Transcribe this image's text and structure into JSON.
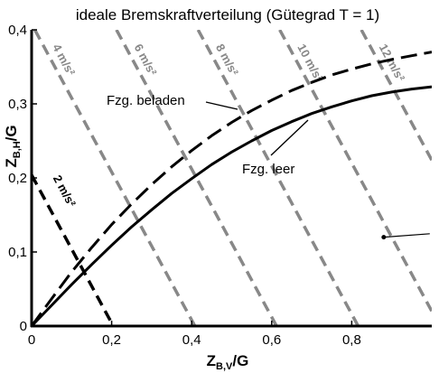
{
  "chart_data": {
    "type": "line",
    "title": "ideale Bremskraftverteilung (Gütegrad T = 1)",
    "xlabel": {
      "main": "Z",
      "sub": "B,V",
      "suffix": "/G"
    },
    "ylabel": {
      "main": "Z",
      "sub": "B,H",
      "suffix": "/G"
    },
    "xlim": [
      0,
      1.0
    ],
    "ylim": [
      0,
      0.4
    ],
    "x_ticks": [
      0,
      0.2,
      0.4,
      0.6,
      0.8
    ],
    "x_tick_labels": [
      "0",
      "0,2",
      "0,4",
      "0,6",
      "0,8"
    ],
    "y_ticks": [
      0,
      0.1,
      0.2,
      0.3,
      0.4
    ],
    "y_tick_labels": [
      "0",
      "0,1",
      "0,2",
      "0,3",
      "0,4"
    ],
    "grid": false,
    "series": [
      {
        "name": "Fzg. beladen",
        "style": "dashed",
        "color": "#000000",
        "x": [
          0,
          0.05,
          0.1,
          0.15,
          0.2,
          0.25,
          0.3,
          0.35,
          0.4,
          0.45,
          0.5,
          0.55,
          0.6,
          0.65,
          0.7,
          0.75,
          0.8,
          0.85,
          0.9,
          0.95,
          1.0
        ],
        "y": [
          0,
          0.037,
          0.073,
          0.106,
          0.137,
          0.165,
          0.191,
          0.215,
          0.237,
          0.257,
          0.275,
          0.291,
          0.305,
          0.318,
          0.329,
          0.339,
          0.347,
          0.354,
          0.36,
          0.365,
          0.37
        ]
      },
      {
        "name": "Fzg. leer",
        "style": "solid",
        "color": "#000000",
        "x": [
          0,
          0.05,
          0.1,
          0.15,
          0.2,
          0.25,
          0.3,
          0.35,
          0.4,
          0.45,
          0.5,
          0.55,
          0.6,
          0.65,
          0.7,
          0.75,
          0.8,
          0.85,
          0.9,
          0.95,
          1.0
        ],
        "y": [
          0,
          0.028,
          0.056,
          0.083,
          0.109,
          0.134,
          0.157,
          0.179,
          0.199,
          0.218,
          0.235,
          0.25,
          0.264,
          0.276,
          0.287,
          0.296,
          0.304,
          0.311,
          0.316,
          0.32,
          0.323
        ]
      }
    ],
    "deceleration_lines": [
      {
        "label": "2 m/s²",
        "sum": 0.204,
        "label_at": [
          0.035,
          0.36
        ],
        "color": "#000000"
      },
      {
        "label": "4 m/s²",
        "sum": 0.408,
        "color": "#888888"
      },
      {
        "label": "6 m/s²",
        "sum": 0.612,
        "color": "#888888"
      },
      {
        "label": "8 m/s²",
        "sum": 0.816,
        "color": "#888888"
      },
      {
        "label": "10 m/s²",
        "sum": 1.02,
        "color": "#888888"
      },
      {
        "label": "12 m/s²",
        "sum": 1.224,
        "color": "#888888"
      }
    ],
    "annotation": {
      "point": [
        0.88,
        0.12
      ],
      "to": [
        0.995,
        0.11
      ]
    }
  }
}
